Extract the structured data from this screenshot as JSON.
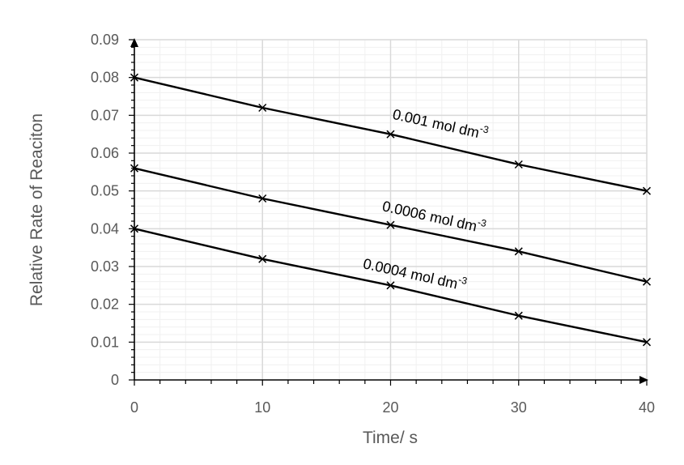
{
  "chart_data": {
    "type": "line",
    "title": "",
    "xlabel": "Time/ s",
    "ylabel": "Relative Rate of Reaciton",
    "xlim": [
      0,
      40
    ],
    "ylim": [
      0,
      0.09
    ],
    "x_ticks": [
      "0",
      "10",
      "20",
      "30",
      "40"
    ],
    "y_ticks": [
      "0",
      "0.01",
      "0.02",
      "0.03",
      "0.04",
      "0.05",
      "0.06",
      "0.07",
      "0.08",
      "0.09"
    ],
    "grid": true,
    "marker": "x",
    "x": [
      0,
      10,
      20,
      30,
      40
    ],
    "series": [
      {
        "values": [
          0.08,
          0.072,
          0.065,
          0.057,
          0.05
        ],
        "label": {
          "text": "0.001 mol dm",
          "sup": "-3",
          "at_x": 20.1,
          "at_y": 0.0691
        }
      },
      {
        "values": [
          0.056,
          0.048,
          0.041,
          0.034,
          0.026
        ],
        "label": {
          "text": "0.0006 mol dm",
          "sup": "-3",
          "at_x": 19.3,
          "at_y": 0.0448
        }
      },
      {
        "values": [
          0.04,
          0.032,
          0.025,
          0.017,
          0.01
        ],
        "label": {
          "text": "0.0004 mol dm",
          "sup": "-3",
          "at_x": 17.8,
          "at_y": 0.0296
        }
      }
    ],
    "line_color": "#000000",
    "grid_color": "#d9d9d9",
    "minor_grid_color": "#f0f0f0",
    "text_color": "#595959"
  }
}
